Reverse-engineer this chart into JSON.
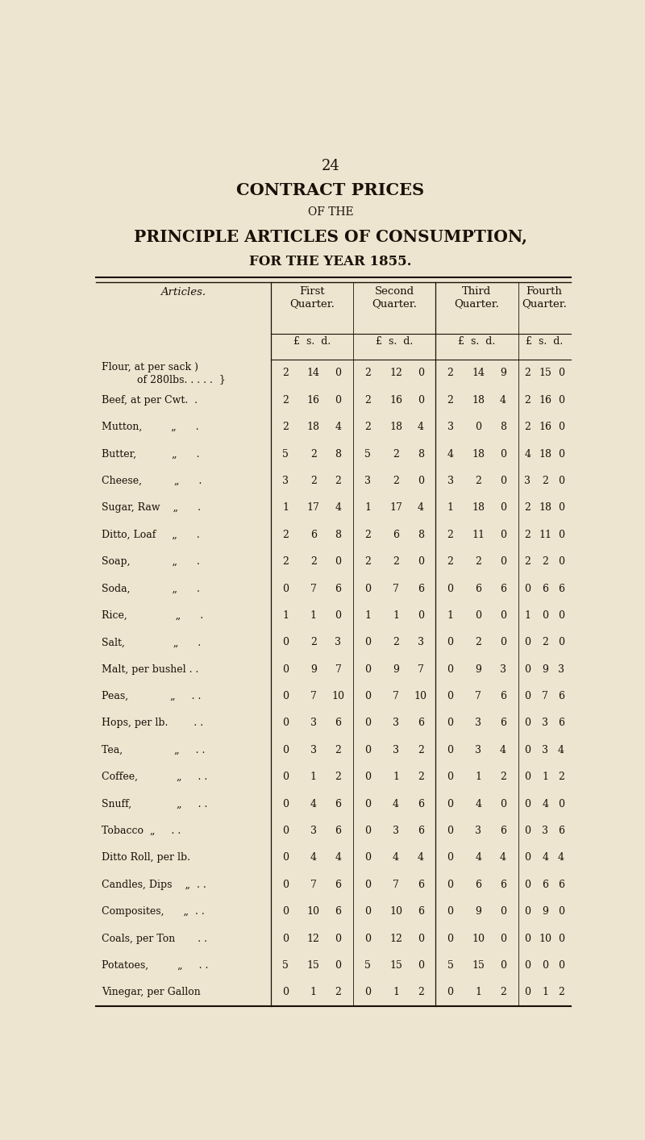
{
  "page_number": "24",
  "title_line1": "CONTRACT PRICES",
  "title_line2": "OF THE",
  "title_line3": "PRINCIPLE ARTICLES OF CONSUMPTION,",
  "title_line4": "FOR THE YEAR 1855.",
  "bg_color": "#ede5d0",
  "text_color": "#1a1008",
  "rows": [
    [
      "Flour, at per sack )\n    of 280lbs. . . . .  }",
      "2  14  0",
      "2  12  0",
      "2  14  9",
      "2  15  0"
    ],
    [
      "Beef, at per Cwt.  .",
      "2  16  0",
      "2  16  0",
      "2  18  4",
      "2  16  0"
    ],
    [
      "Mutton,         „      .",
      "2  18  4",
      "2  18  4",
      "3    0  8",
      "2  16  0"
    ],
    [
      "Butter,           „      .",
      "5    2  8",
      "5    2  8",
      "4  18  0",
      "4  18  0"
    ],
    [
      "Cheese,          „      .",
      "3    2  2",
      "3    2  0",
      "3    2  0",
      "3    2  0"
    ],
    [
      "Sugar, Raw    „      .",
      "1  17  4",
      "1  17  4",
      "1  18  0",
      "2  18  0"
    ],
    [
      "Ditto, Loaf     „      .",
      "2    6  8",
      "2    6  8",
      "2  11  0",
      "2  11  0"
    ],
    [
      "Soap,             „      .",
      "2    2  0",
      "2    2  0",
      "2    2  0",
      "2    2  0"
    ],
    [
      "Soda,             „      .",
      "0    7  6",
      "0    7  6",
      "0    6  6",
      "0    6  6"
    ],
    [
      "Rice,               „      .",
      "1    1  0",
      "1    1  0",
      "1    0  0",
      "1    0  0"
    ],
    [
      "Salt,               „      .",
      "0    2  3",
      "0    2  3",
      "0    2  0",
      "0    2  0"
    ],
    [
      "Malt, per bushel . .",
      "0    9  7",
      "0    9  7",
      "0    9  3",
      "0    9  3"
    ],
    [
      "Peas,             „     . .",
      "0    7  10",
      "0    7  10",
      "0    7  6",
      "0    7  6"
    ],
    [
      "Hops, per lb.        . .",
      "0    3  6",
      "0    3  6",
      "0    3  6",
      "0    3  6"
    ],
    [
      "Tea,                „     . .",
      "0    3  2",
      "0    3  2",
      "0    3  4",
      "0    3  4"
    ],
    [
      "Coffee,            „     . .",
      "0    1  2",
      "0    1  2",
      "0    1  2",
      "0    1  2"
    ],
    [
      "Snuff,              „     . .",
      "0    4  6",
      "0    4  6",
      "0    4  0",
      "0    4  0"
    ],
    [
      "Tobacco  „     . .",
      "0    3  6",
      "0    3  6",
      "0    3  6",
      "0    3  6"
    ],
    [
      "Ditto Roll, per lb.",
      "0    4  4",
      "0    4  4",
      "0    4  4",
      "0    4  4"
    ],
    [
      "Candles, Dips    „  . .",
      "0    7  6",
      "0    7  6",
      "0    6  6",
      "0    6  6"
    ],
    [
      "Composites,      „  . .",
      "0  10  6",
      "0  10  6",
      "0    9  0",
      "0    9  0"
    ],
    [
      "Coals, per Ton       . .",
      "0  12  0",
      "0  12  0",
      "0  10  0",
      "0  10  0"
    ],
    [
      "Potatoes,         „     . .",
      "5  15  0",
      "5  15  0",
      "5  15  0",
      "0    0  0"
    ],
    [
      "Vinegar, per Gallon",
      "0    1  2",
      "0    1  2",
      "0    1  2",
      "0    1  2"
    ]
  ]
}
